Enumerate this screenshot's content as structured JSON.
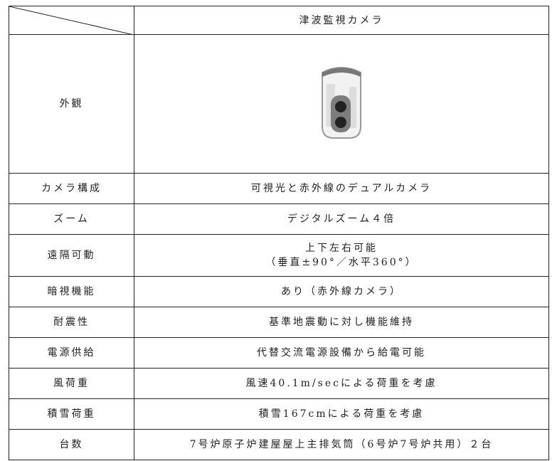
{
  "table": {
    "header": {
      "title": "津波監視カメラ"
    },
    "appearance_label": "外観",
    "rows": [
      {
        "label": "カメラ構成",
        "lines": [
          "可視光と赤外線のデュアルカメラ"
        ]
      },
      {
        "label": "ズーム",
        "lines": [
          "デジタルズーム４倍"
        ]
      },
      {
        "label": "遠隔可動",
        "lines": [
          "上下左右可能",
          "（垂直±90°／水平360°）"
        ]
      },
      {
        "label": "暗視機能",
        "lines": [
          "あり（赤外線カメラ）"
        ]
      },
      {
        "label": "耐震性",
        "lines": [
          "基準地震動に対し機能維持"
        ]
      },
      {
        "label": "電源供給",
        "lines": [
          "代替交流電源設備から給電可能"
        ]
      },
      {
        "label": "風荷重",
        "lines": [
          "風速40.1m/secによる荷重を考慮"
        ]
      },
      {
        "label": "積雪荷重",
        "lines": [
          "積雪167cmによる荷重を考慮"
        ]
      },
      {
        "label": "台数",
        "lines": [
          "7号炉原子炉建屋屋上主排気筒（6号炉7号炉共用）２台"
        ]
      }
    ]
  }
}
